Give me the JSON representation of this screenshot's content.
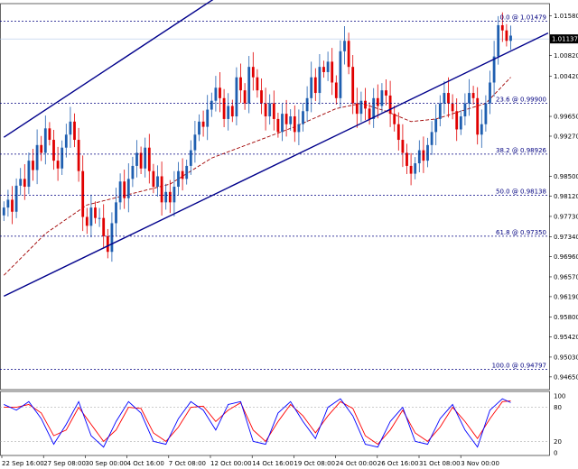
{
  "chart_data": {
    "type": "candlestick",
    "background": "#ffffff",
    "colors": {
      "bull": "#1f5fb0",
      "bear": "#e00000",
      "channel": "#00008b",
      "moving_average": "#a00000",
      "fib_line": "#000080",
      "stoch_main": "#0000ff",
      "stoch_signal": "#ff0000",
      "grid": "#000000",
      "current_price_line": "#b0c8e8"
    },
    "price_axis": {
      "ylim": [
        0.9444,
        1.0178
      ],
      "ticks": [
        "1.01580",
        "1.00820",
        "1.00420",
        "0.99650",
        "0.99270",
        "0.98500",
        "0.98120",
        "0.97730",
        "0.97340",
        "0.96960",
        "0.96570",
        "0.96190",
        "0.95800",
        "0.95420",
        "0.95030",
        "0.94650"
      ],
      "current_price": "1.01137"
    },
    "time_axis": {
      "labels": [
        "22 Sep 16:00",
        "27 Sep 08:00",
        "30 Sep 00:00",
        "4 Oct 16:00",
        "7 Oct 08:00",
        "12 Oct 00:00",
        "14 Oct 16:00",
        "19 Oct 08:00",
        "24 Oct 00:00",
        "26 Oct 16:00",
        "31 Oct 08:00",
        "3 Nov 00:00"
      ]
    },
    "fibonacci_levels": [
      {
        "label": "0.0 @ 1.01479",
        "price": 1.01479
      },
      {
        "label": "23.6 @ 0.99900",
        "price": 0.999
      },
      {
        "label": "38.2 @ 0.98926",
        "price": 0.98926
      },
      {
        "label": "50.0 @ 0.98138",
        "price": 0.98138
      },
      {
        "label": "61.8 @ 0.97350",
        "price": 0.9735
      },
      {
        "label": "100.0 @ 0.94797",
        "price": 0.94797
      }
    ],
    "channel_lines": [
      {
        "name": "upper",
        "from": {
          "bar": 0,
          "price": 0.9925
        },
        "to": {
          "bar": 52,
          "price": 1.0198
        }
      },
      {
        "name": "lower",
        "from": {
          "bar": 0,
          "price": 0.962
        },
        "to": {
          "bar": 131,
          "price": 1.0125
        }
      }
    ],
    "closes": [
      0.979,
      0.9805,
      0.9782,
      0.9832,
      0.9845,
      0.983,
      0.988,
      0.9862,
      0.991,
      0.9895,
      0.9942,
      0.992,
      0.988,
      0.9865,
      0.9905,
      0.993,
      0.9955,
      0.992,
      0.986,
      0.9772,
      0.9755,
      0.979,
      0.977,
      0.977,
      0.9735,
      0.9705,
      0.976,
      0.98,
      0.984,
      0.9808,
      0.9845,
      0.987,
      0.9895,
      0.9865,
      0.9905,
      0.986,
      0.983,
      0.985,
      0.98,
      0.982,
      0.98,
      0.983,
      0.986,
      0.9845,
      0.987,
      0.99,
      0.993,
      0.9955,
      0.9945,
      0.9978,
      0.9995,
      1.002,
      1.0,
      0.996,
      0.9985,
      0.9965,
      1.004,
      1.0015,
      0.999,
      1.006,
      1.004,
      1.0015,
      0.999,
      0.9965,
      0.999,
      0.996,
      0.9935,
      0.997,
      0.995,
      0.9965,
      0.9935,
      0.995,
      0.9975,
      1.0,
      1.004,
      1.001,
      1.006,
      1.005,
      1.007,
      1.003,
      1.0,
      1.009,
      1.011,
      1.006,
      0.999,
      0.997,
      0.9995,
      0.998,
      0.996,
      1.0,
      0.9985,
      1.0015,
      1.0005,
      0.997,
      0.995,
      0.992,
      0.9895,
      0.987,
      0.9855,
      0.9875,
      0.99,
      0.988,
      0.991,
      0.9935,
      0.996,
      0.999,
      1.001,
      0.999,
      0.9975,
      0.994,
      0.9965,
      0.999,
      1.001,
      1.0,
      0.993,
      0.995,
      0.999,
      1.003,
      1.008,
      1.014,
      1.013,
      1.011,
      1.012
    ],
    "ma_anchors": [
      [
        0,
        0.966
      ],
      [
        10,
        0.974
      ],
      [
        20,
        0.9795
      ],
      [
        30,
        0.9815
      ],
      [
        40,
        0.9835
      ],
      [
        50,
        0.9885
      ],
      [
        60,
        0.9915
      ],
      [
        70,
        0.9945
      ],
      [
        80,
        0.998
      ],
      [
        86,
        0.999
      ],
      [
        92,
        0.9975
      ],
      [
        98,
        0.9955
      ],
      [
        104,
        0.996
      ],
      [
        110,
        0.9975
      ],
      [
        116,
        0.999
      ],
      [
        122,
        1.004
      ]
    ],
    "stochastic": {
      "levels": [
        "100",
        "80",
        "20",
        "0"
      ],
      "main_anchors": [
        [
          0,
          85
        ],
        [
          3,
          75
        ],
        [
          6,
          90
        ],
        [
          9,
          60
        ],
        [
          12,
          15
        ],
        [
          15,
          50
        ],
        [
          18,
          90
        ],
        [
          21,
          30
        ],
        [
          24,
          10
        ],
        [
          27,
          55
        ],
        [
          30,
          90
        ],
        [
          33,
          70
        ],
        [
          36,
          20
        ],
        [
          39,
          15
        ],
        [
          42,
          60
        ],
        [
          45,
          90
        ],
        [
          48,
          75
        ],
        [
          51,
          40
        ],
        [
          54,
          85
        ],
        [
          57,
          90
        ],
        [
          60,
          20
        ],
        [
          63,
          15
        ],
        [
          66,
          70
        ],
        [
          69,
          90
        ],
        [
          72,
          55
        ],
        [
          75,
          25
        ],
        [
          78,
          80
        ],
        [
          81,
          95
        ],
        [
          84,
          65
        ],
        [
          87,
          15
        ],
        [
          90,
          10
        ],
        [
          93,
          55
        ],
        [
          96,
          80
        ],
        [
          99,
          20
        ],
        [
          102,
          15
        ],
        [
          105,
          60
        ],
        [
          108,
          85
        ],
        [
          111,
          40
        ],
        [
          114,
          10
        ],
        [
          117,
          75
        ],
        [
          120,
          95
        ],
        [
          123,
          85
        ],
        [
          125,
          70
        ]
      ],
      "signal_anchors": [
        [
          0,
          80
        ],
        [
          3,
          80
        ],
        [
          6,
          85
        ],
        [
          9,
          70
        ],
        [
          12,
          30
        ],
        [
          15,
          40
        ],
        [
          18,
          80
        ],
        [
          21,
          50
        ],
        [
          24,
          20
        ],
        [
          27,
          40
        ],
        [
          30,
          80
        ],
        [
          33,
          78
        ],
        [
          36,
          35
        ],
        [
          39,
          20
        ],
        [
          42,
          45
        ],
        [
          45,
          80
        ],
        [
          48,
          82
        ],
        [
          51,
          55
        ],
        [
          54,
          75
        ],
        [
          57,
          88
        ],
        [
          60,
          40
        ],
        [
          63,
          20
        ],
        [
          66,
          55
        ],
        [
          69,
          85
        ],
        [
          72,
          65
        ],
        [
          75,
          35
        ],
        [
          78,
          65
        ],
        [
          81,
          90
        ],
        [
          84,
          78
        ],
        [
          87,
          30
        ],
        [
          90,
          15
        ],
        [
          93,
          40
        ],
        [
          96,
          75
        ],
        [
          99,
          35
        ],
        [
          102,
          20
        ],
        [
          105,
          45
        ],
        [
          108,
          80
        ],
        [
          111,
          55
        ],
        [
          114,
          25
        ],
        [
          117,
          60
        ],
        [
          120,
          90
        ],
        [
          123,
          92
        ],
        [
          125,
          80
        ]
      ]
    }
  }
}
